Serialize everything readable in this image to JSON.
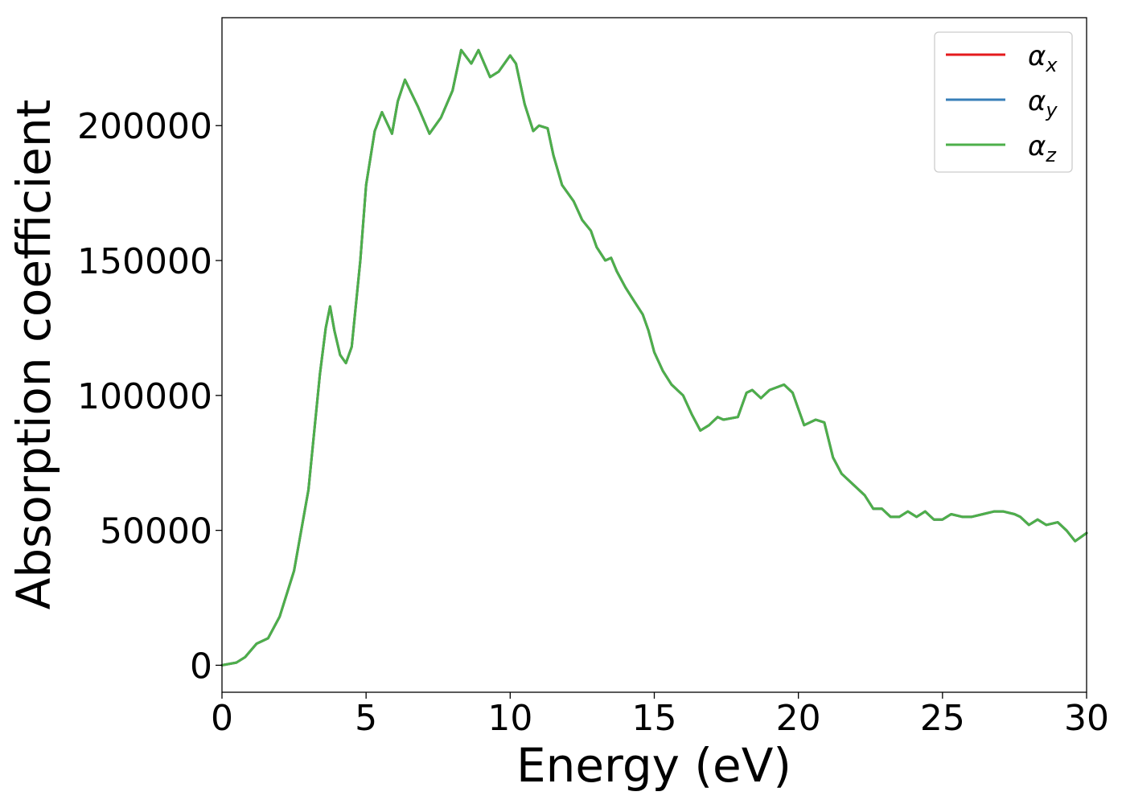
{
  "chart_data": {
    "type": "line",
    "xlabel": "Energy (eV)",
    "ylabel": "Absorption coefficient",
    "xlim": [
      0,
      30
    ],
    "ylim": [
      -10000,
      240000
    ],
    "xticks": [
      0,
      5,
      10,
      15,
      20,
      25,
      30
    ],
    "yticks": [
      0,
      50000,
      100000,
      150000,
      200000
    ],
    "xtick_labels": [
      "0",
      "5",
      "10",
      "15",
      "20",
      "25",
      "30"
    ],
    "ytick_labels": [
      "0",
      "50000",
      "100000",
      "150000",
      "200000"
    ],
    "grid": false,
    "legend_position": "top-right",
    "legend_labels": [
      {
        "base": "α",
        "sub": "x"
      },
      {
        "base": "α",
        "sub": "y"
      },
      {
        "base": "α",
        "sub": "z"
      }
    ],
    "series": [
      {
        "name": "α_x",
        "color": "#e41a1c"
      },
      {
        "name": "α_y",
        "color": "#377eb8"
      },
      {
        "name": "α_z",
        "color": "#4daf4a"
      }
    ],
    "x": [
      0,
      0.5,
      0.8,
      1.2,
      1.6,
      2.0,
      2.5,
      3.0,
      3.4,
      3.6,
      3.75,
      3.9,
      4.1,
      4.3,
      4.5,
      4.8,
      5.0,
      5.3,
      5.55,
      5.9,
      6.1,
      6.35,
      6.8,
      7.2,
      7.6,
      8.0,
      8.3,
      8.65,
      8.9,
      9.3,
      9.6,
      10.0,
      10.2,
      10.5,
      10.8,
      11.0,
      11.3,
      11.5,
      11.8,
      12.2,
      12.5,
      12.8,
      13.0,
      13.3,
      13.5,
      13.7,
      14.0,
      14.3,
      14.6,
      14.8,
      15.0,
      15.3,
      15.6,
      16.0,
      16.3,
      16.6,
      16.9,
      17.2,
      17.4,
      17.9,
      18.2,
      18.4,
      18.7,
      19.0,
      19.5,
      19.8,
      20.2,
      20.6,
      20.9,
      21.2,
      21.5,
      21.9,
      22.3,
      22.6,
      22.9,
      23.2,
      23.5,
      23.8,
      24.1,
      24.4,
      24.7,
      25.0,
      25.3,
      25.7,
      26.0,
      26.4,
      26.8,
      27.1,
      27.5,
      27.7,
      28.0,
      28.3,
      28.6,
      29.0,
      29.3,
      29.6,
      30.0
    ],
    "values": [
      0,
      1000,
      3000,
      8000,
      10000,
      18000,
      35000,
      65000,
      108000,
      125000,
      133000,
      124000,
      115000,
      112000,
      118000,
      150000,
      178000,
      198000,
      205000,
      197000,
      209000,
      217000,
      207000,
      197000,
      203000,
      213000,
      228000,
      223000,
      228000,
      218000,
      220000,
      226000,
      223000,
      208000,
      198000,
      200000,
      199000,
      189000,
      178000,
      172000,
      165000,
      161000,
      155000,
      150000,
      151000,
      146000,
      140000,
      135000,
      130000,
      124000,
      116000,
      109000,
      104000,
      100000,
      93000,
      87000,
      89000,
      92000,
      91000,
      92000,
      101000,
      102000,
      99000,
      102000,
      104000,
      101000,
      89000,
      91000,
      90000,
      77000,
      71000,
      67000,
      63000,
      58000,
      58000,
      55000,
      55000,
      57000,
      55000,
      57000,
      54000,
      54000,
      56000,
      55000,
      55000,
      56000,
      57000,
      57000,
      56000,
      55000,
      52000,
      54000,
      52000,
      53000,
      50000,
      46000,
      49000
    ]
  }
}
